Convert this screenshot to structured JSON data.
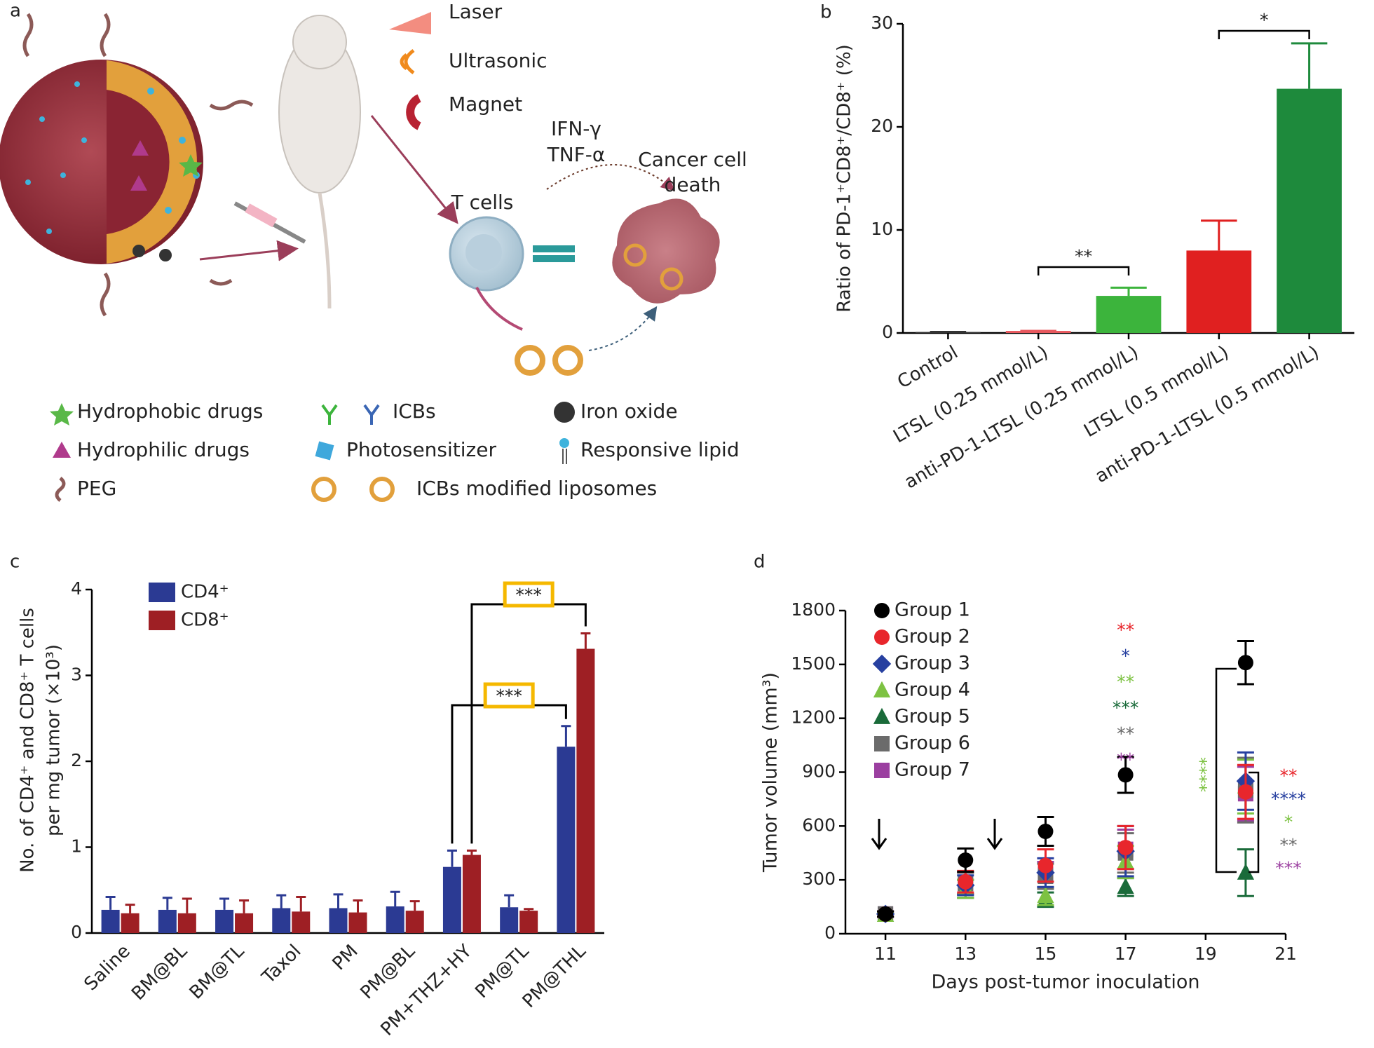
{
  "panel_labels": [
    "a",
    "b",
    "c",
    "d"
  ],
  "diagram": {
    "stimuli": [
      "Laser",
      "Ultrasonic",
      "Magnet"
    ],
    "cytokines": [
      "IFN-γ",
      "TNF-α"
    ],
    "cancer_label": [
      "Cancer cell",
      "death"
    ],
    "t_cells": "T cells",
    "legend": [
      "Hydrophobic drugs",
      "Hydrophilic drugs",
      "PEG",
      "ICBs",
      "Photosensitizer",
      "ICBs modified liposomes",
      "Iron oxide",
      "Responsive lipid"
    ]
  },
  "chart_data": [
    {
      "type": "bar",
      "ylabel": "Ratio of PD-1⁺CD8⁺/CD8⁺ (%)",
      "categories": [
        "Control",
        "LTSL (0.25 mmol/L)",
        "anti-PD-1-LTSL (0.25 mmol/L)",
        "LTSL (0.5 mmol/L)",
        "anti-PD-1-LTSL (0.5 mmol/L)"
      ],
      "values": [
        0.1,
        0.2,
        3.6,
        8.0,
        23.7
      ],
      "errors": [
        0,
        0,
        0.8,
        2.9,
        4.4
      ],
      "colors": [
        "#333333",
        "#e8585e",
        "#3cb43c",
        "#e02020",
        "#1e8a3c"
      ],
      "ylim": [
        0,
        30
      ],
      "yticks": [
        0,
        10,
        20,
        30
      ],
      "annotations": [
        "**",
        "*"
      ]
    },
    {
      "type": "grouped_bar",
      "ylabel": [
        "No. of CD4⁺ and CD8⁺ T cells",
        "per mg tumor (×10³)"
      ],
      "categories": [
        "Saline",
        "BM@BL",
        "BM@TL",
        "Taxol",
        "PM",
        "PM@BL",
        "PM+THZ+HY",
        "PM@TL",
        "PM@THL"
      ],
      "series": [
        {
          "name": "CD4⁺",
          "color": "#2b3a93",
          "values": [
            0.27,
            0.27,
            0.27,
            0.29,
            0.29,
            0.31,
            0.77,
            0.3,
            2.17
          ],
          "errors": [
            0.15,
            0.14,
            0.13,
            0.15,
            0.16,
            0.17,
            0.19,
            0.14,
            0.24
          ]
        },
        {
          "name": "CD8⁺",
          "color": "#9e1f24",
          "values": [
            0.23,
            0.23,
            0.23,
            0.25,
            0.24,
            0.26,
            0.91,
            0.26,
            3.31
          ],
          "errors": [
            0.1,
            0.17,
            0.15,
            0.17,
            0.14,
            0.11,
            0.05,
            0.02,
            0.18
          ]
        }
      ],
      "ylim": [
        0,
        4
      ],
      "yticks": [
        0,
        1,
        2,
        3,
        4
      ],
      "annotations": [
        "***",
        "***"
      ]
    },
    {
      "type": "scatter",
      "xlabel": "Days post-tumor inoculation",
      "ylabel": "Tumor volume (mm³)",
      "x": [
        11,
        13,
        15,
        17,
        20
      ],
      "series": [
        {
          "name": "Group 1",
          "color": "#000000",
          "marker": "circle",
          "values": [
            110,
            410,
            570,
            885,
            1510
          ],
          "errors": [
            15,
            65,
            80,
            100,
            120
          ]
        },
        {
          "name": "Group 2",
          "color": "#e8262c",
          "marker": "circle",
          "values": [
            110,
            290,
            380,
            480,
            790
          ],
          "errors": [
            15,
            60,
            90,
            120,
            150
          ]
        },
        {
          "name": "Group 3",
          "color": "#2740a0",
          "marker": "diamond",
          "values": [
            110,
            270,
            340,
            460,
            850
          ],
          "errors": [
            15,
            55,
            80,
            140,
            160
          ]
        },
        {
          "name": "Group 4",
          "color": "#7dc242",
          "marker": "triangle",
          "values": [
            105,
            250,
            210,
            400,
            820
          ],
          "errors": [
            10,
            50,
            50,
            90,
            150
          ]
        },
        {
          "name": "Group 5",
          "color": "#1a6b3a",
          "marker": "triangle",
          "values": [
            105,
            250,
            190,
            260,
            340
          ],
          "errors": [
            10,
            50,
            40,
            50,
            130
          ]
        },
        {
          "name": "Group 6",
          "color": "#6b6b6b",
          "marker": "square",
          "values": [
            110,
            280,
            320,
            450,
            800
          ],
          "errors": [
            15,
            60,
            70,
            110,
            180
          ]
        },
        {
          "name": "Group 7",
          "color": "#9b3fa0",
          "marker": "square",
          "values": [
            110,
            280,
            330,
            470,
            780
          ],
          "errors": [
            15,
            60,
            70,
            110,
            150
          ]
        }
      ],
      "xlim": [
        10,
        21
      ],
      "xticks": [
        11,
        13,
        15,
        17,
        19,
        21
      ],
      "ylim": [
        0,
        1800
      ],
      "yticks": [
        0,
        300,
        600,
        900,
        1200,
        1500,
        1800
      ],
      "annotations": {
        "mid": [
          {
            "text": "**",
            "color": "#e8262c"
          },
          {
            "text": "*",
            "color": "#2740a0"
          },
          {
            "text": "**",
            "color": "#7dc242"
          },
          {
            "text": "***",
            "color": "#1a6b3a"
          },
          {
            "text": "**",
            "color": "#6b6b6b"
          },
          {
            "text": "**",
            "color": "#9b3fa0"
          }
        ],
        "bracket": {
          "text": "****",
          "color": "#7dc242"
        },
        "right": [
          {
            "text": "**",
            "color": "#e8262c"
          },
          {
            "text": "****",
            "color": "#2740a0"
          },
          {
            "text": "*",
            "color": "#7dc242"
          },
          {
            "text": "**",
            "color": "#6b6b6b"
          },
          {
            "text": "***",
            "color": "#9b3fa0"
          }
        ]
      }
    }
  ]
}
